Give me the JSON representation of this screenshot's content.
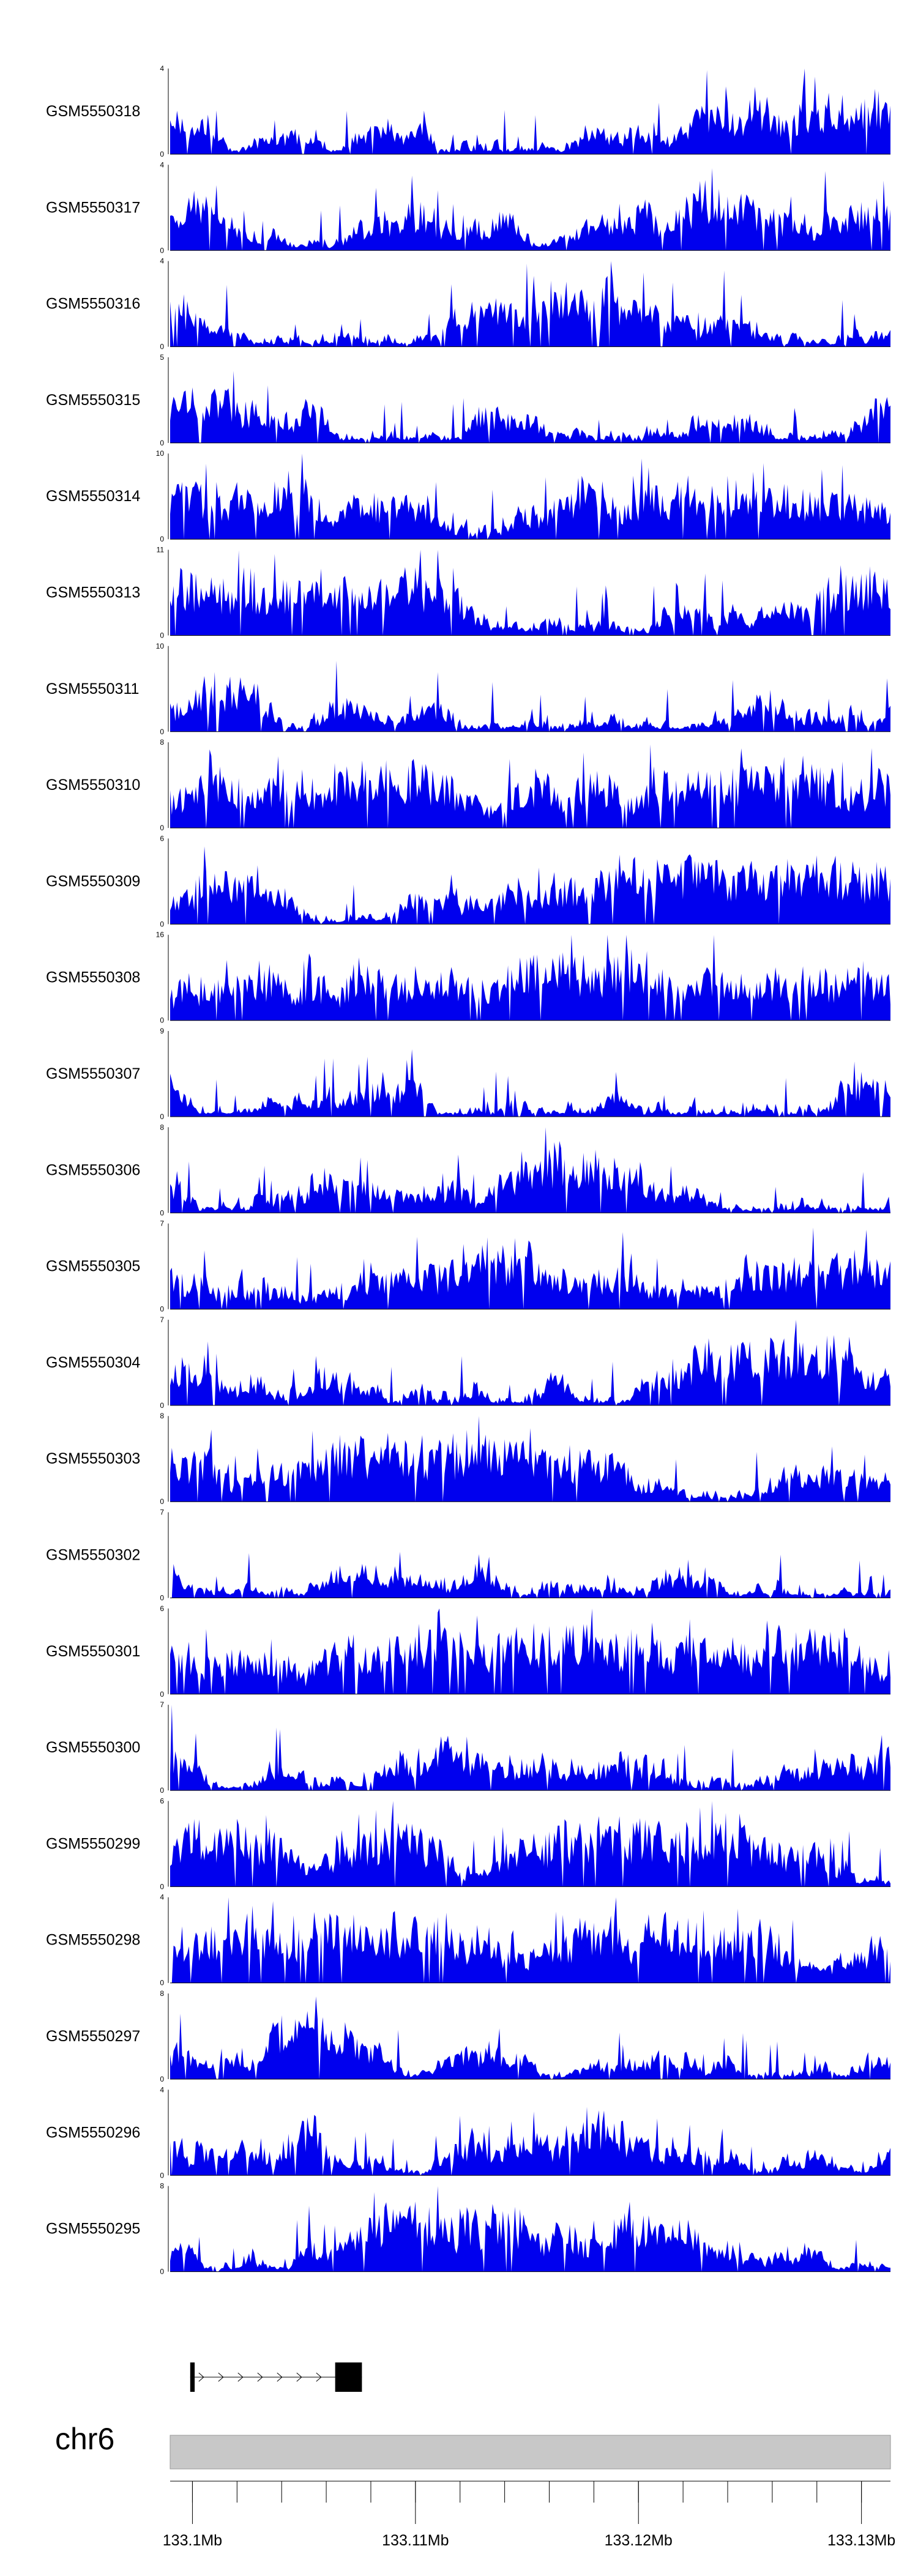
{
  "chart_data": {
    "type": "area",
    "tracks": [
      {
        "name": "GSM5550318",
        "ymax": "4",
        "ymin": "0"
      },
      {
        "name": "GSM5550317",
        "ymax": "4",
        "ymin": "0"
      },
      {
        "name": "GSM5550316",
        "ymax": "4",
        "ymin": "0"
      },
      {
        "name": "GSM5550315",
        "ymax": "5",
        "ymin": "0"
      },
      {
        "name": "GSM5550314",
        "ymax": "10",
        "ymin": "0"
      },
      {
        "name": "GSM5550313",
        "ymax": "11",
        "ymin": "0"
      },
      {
        "name": "GSM5550311",
        "ymax": "10",
        "ymin": "0"
      },
      {
        "name": "GSM5550310",
        "ymax": "8",
        "ymin": "0"
      },
      {
        "name": "GSM5550309",
        "ymax": "6",
        "ymin": "0"
      },
      {
        "name": "GSM5550308",
        "ymax": "16",
        "ymin": "0"
      },
      {
        "name": "GSM5550307",
        "ymax": "9",
        "ymin": "0"
      },
      {
        "name": "GSM5550306",
        "ymax": "8",
        "ymin": "0"
      },
      {
        "name": "GSM5550305",
        "ymax": "7",
        "ymin": "0"
      },
      {
        "name": "GSM5550304",
        "ymax": "7",
        "ymin": "0"
      },
      {
        "name": "GSM5550303",
        "ymax": "8",
        "ymin": "0"
      },
      {
        "name": "GSM5550302",
        "ymax": "7",
        "ymin": "0"
      },
      {
        "name": "GSM5550301",
        "ymax": "6",
        "ymin": "0"
      },
      {
        "name": "GSM5550300",
        "ymax": "7",
        "ymin": "0"
      },
      {
        "name": "GSM5550299",
        "ymax": "6",
        "ymin": "0"
      },
      {
        "name": "GSM5550298",
        "ymax": "4",
        "ymin": "0"
      },
      {
        "name": "GSM5550297",
        "ymax": "8",
        "ymin": "0"
      },
      {
        "name": "GSM5550296",
        "ymax": "4",
        "ymin": "0"
      },
      {
        "name": "GSM5550295",
        "ymax": "8",
        "ymin": "0"
      }
    ],
    "xlim": [
      133.099,
      133.1313
    ],
    "x_ticks": [
      {
        "value": 133.1,
        "label": "133.1Mb"
      },
      {
        "value": 133.11,
        "label": "133.11Mb"
      },
      {
        "value": 133.12,
        "label": "133.12Mb"
      },
      {
        "value": 133.13,
        "label": "133.13Mb"
      }
    ],
    "chromosome": "chr6",
    "gene": {
      "start": 133.0999,
      "end": 133.1076,
      "strand": "+",
      "exons": [
        [
          133.0999,
          133.1001
        ],
        [
          133.1064,
          133.1076
        ]
      ]
    },
    "colors": {
      "signal": "#0000ee",
      "ideogram": "#c8c8c8",
      "gene": "#000000"
    },
    "grid": false,
    "legend": "none"
  }
}
